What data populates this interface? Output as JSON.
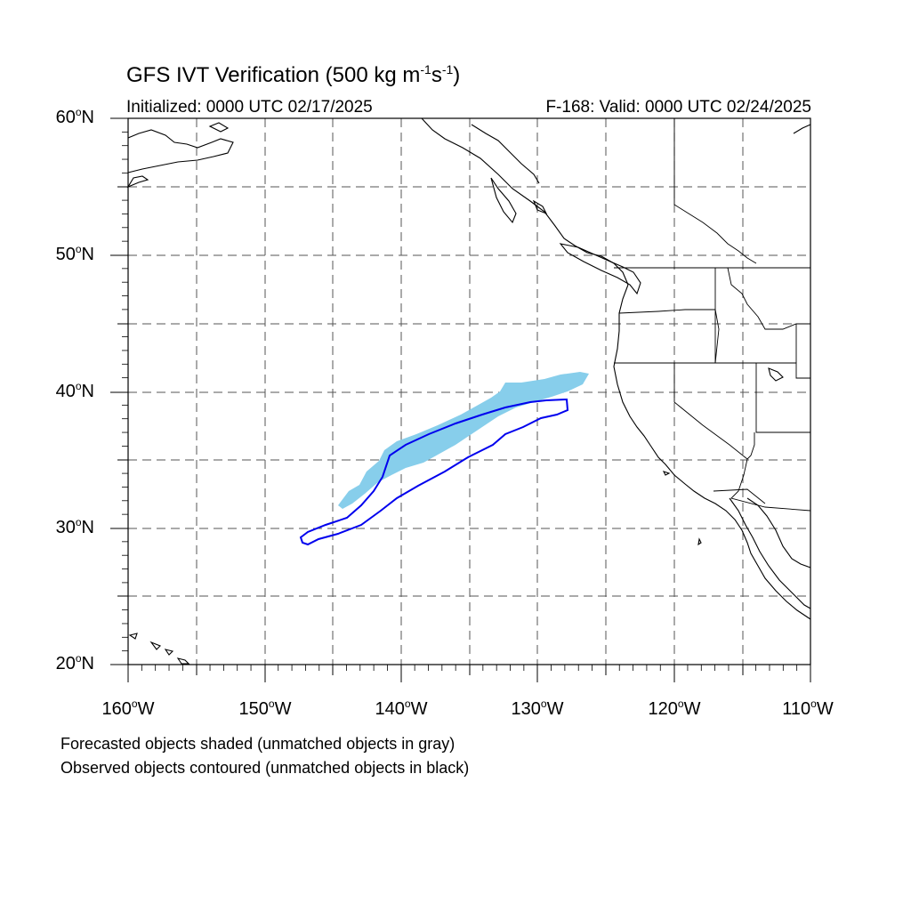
{
  "header": {
    "title_main": "GFS IVT Verification (500 kg m",
    "title_exp1": "-1",
    "title_mid": "s",
    "title_exp2": "-1",
    "title_end": ")",
    "initialized": "Initialized: 0000 UTC 02/17/2025",
    "valid": "F-168: Valid: 0000 UTC 02/24/2025"
  },
  "axes": {
    "lat_labels": [
      "60",
      "50",
      "40",
      "30",
      "20"
    ],
    "lat_suffix": "N",
    "lon_labels": [
      "160",
      "150",
      "140",
      "130",
      "120",
      "110"
    ],
    "lon_suffix": "W",
    "degree_symbol": "o",
    "lat_range": [
      20,
      60
    ],
    "lon_range": [
      -160,
      -110
    ],
    "gridlines": "dashed, every 5 degrees"
  },
  "legend": {
    "line1": "Forecasted objects shaded (unmatched objects in gray)",
    "line2": "Observed objects contoured (unmatched objects in black)"
  },
  "colors": {
    "forecast_fill": "#87ceeb",
    "observed_contour": "#0000ee",
    "coastline": "#000000",
    "grid": "#555555"
  },
  "objects": {
    "forecast_shaded": {
      "label": "forecast IVT object",
      "approx_extent": {
        "lon": [
          -144.6,
          -126
        ],
        "lat": [
          31.5,
          41.4
        ]
      }
    },
    "observed_contour": {
      "label": "observed IVT object",
      "approx_extent": {
        "lon": [
          -147,
          -128
        ],
        "lat": [
          28.8,
          39.4
        ]
      }
    }
  }
}
